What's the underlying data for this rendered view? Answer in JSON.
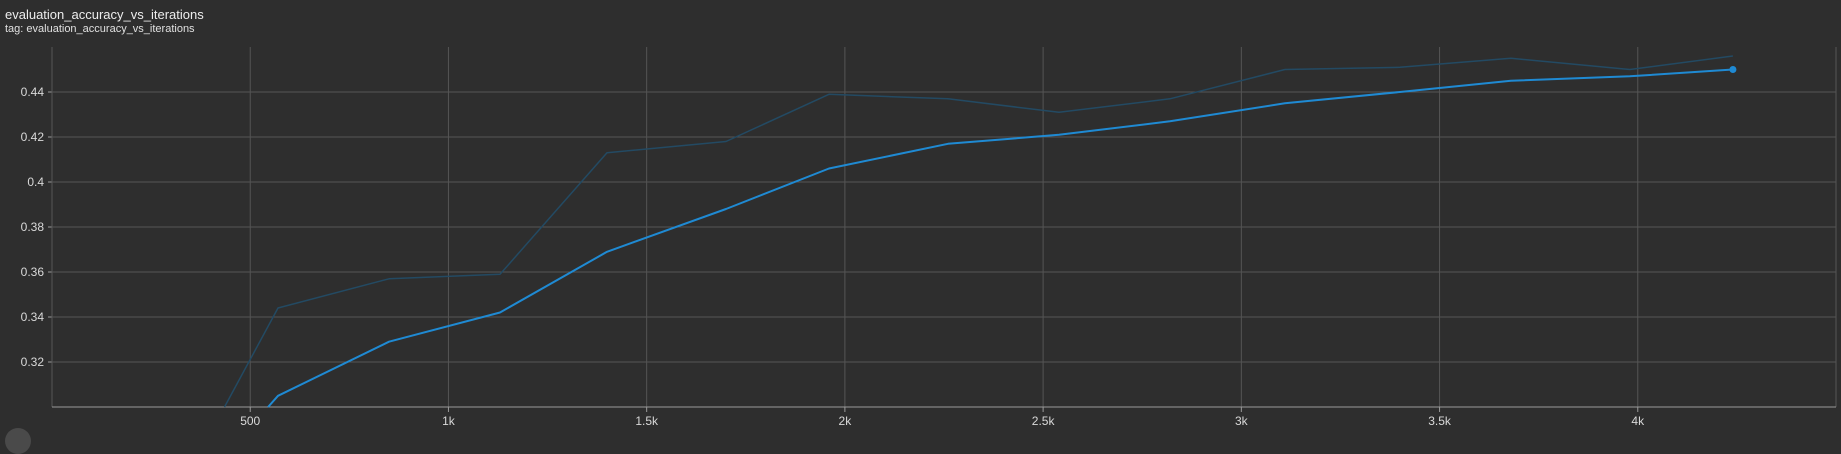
{
  "card": {
    "title": "evaluation_accuracy_vs_iterations",
    "subtitle": "tag: evaluation_accuracy_vs_iterations"
  },
  "colors": {
    "background": "#2e2e2e",
    "grid": "#555555",
    "smoothed_line": "#1f8ad3",
    "raw_line": "#234a63",
    "axis": "#9a9a9a"
  },
  "chart_data": {
    "type": "line",
    "title": "",
    "xlabel": "",
    "ylabel": "",
    "xlim": [
      0,
      4500
    ],
    "ylim": [
      0.3,
      0.46
    ],
    "x_ticks": [
      500,
      1000,
      1500,
      2000,
      2500,
      3000,
      3500,
      4000
    ],
    "x_tick_labels": [
      "500",
      "1k",
      "1.5k",
      "2k",
      "2.5k",
      "3k",
      "3.5k",
      "4k"
    ],
    "y_ticks": [
      0.32,
      0.34,
      0.36,
      0.38,
      0.4,
      0.42,
      0.44
    ],
    "y_tick_labels": [
      "0.32",
      "0.34",
      "0.36",
      "0.38",
      "0.4",
      "0.42",
      "0.44"
    ],
    "grid": true,
    "series": [
      {
        "role": "raw",
        "x": [
          435,
          570,
          850,
          1130,
          1400,
          1700,
          1960,
          2260,
          2540,
          2820,
          3110,
          3400,
          3680,
          3980,
          4240
        ],
        "values": [
          0.3,
          0.344,
          0.357,
          0.359,
          0.413,
          0.418,
          0.439,
          0.437,
          0.431,
          0.437,
          0.45,
          0.451,
          0.455,
          0.45,
          0.456
        ]
      },
      {
        "role": "smoothed",
        "x": [
          545,
          570,
          850,
          1130,
          1400,
          1700,
          1960,
          2260,
          2540,
          2820,
          3110,
          3400,
          3680,
          3980,
          4240
        ],
        "values": [
          0.3,
          0.305,
          0.329,
          0.342,
          0.369,
          0.388,
          0.406,
          0.417,
          0.421,
          0.427,
          0.435,
          0.44,
          0.445,
          0.447,
          0.45
        ]
      }
    ]
  }
}
